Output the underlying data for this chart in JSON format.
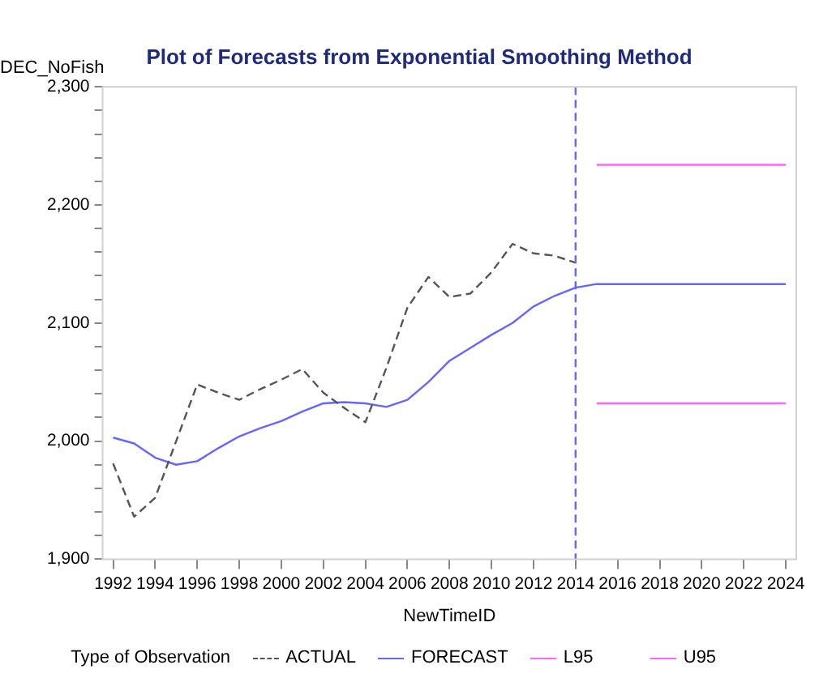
{
  "chart_data": {
    "type": "line",
    "title": "Plot of Forecasts from Exponential Smoothing Method",
    "xlabel": "NewTimeID",
    "ylabel": "DEC_NoFish",
    "legend_title": "Type of Observation",
    "xlim": [
      1991.5,
      2024.5
    ],
    "xticks": [
      1992,
      1994,
      1996,
      1998,
      2000,
      2002,
      2004,
      2006,
      2008,
      2010,
      2012,
      2014,
      2016,
      2018,
      2020,
      2022,
      2024
    ],
    "ylim": [
      1900,
      2300
    ],
    "yticks": [
      {
        "value": 1900,
        "label": "1,900"
      },
      {
        "value": 1920,
        "label": null
      },
      {
        "value": 1940,
        "label": null
      },
      {
        "value": 1960,
        "label": null
      },
      {
        "value": 1980,
        "label": null
      },
      {
        "value": 2000,
        "label": "2,000"
      },
      {
        "value": 2020,
        "label": null
      },
      {
        "value": 2040,
        "label": null
      },
      {
        "value": 2060,
        "label": null
      },
      {
        "value": 2080,
        "label": null
      },
      {
        "value": 2100,
        "label": "2,100"
      },
      {
        "value": 2120,
        "label": null
      },
      {
        "value": 2140,
        "label": null
      },
      {
        "value": 2160,
        "label": null
      },
      {
        "value": 2180,
        "label": null
      },
      {
        "value": 2200,
        "label": "2,200"
      },
      {
        "value": 2220,
        "label": null
      },
      {
        "value": 2240,
        "label": null
      },
      {
        "value": 2260,
        "label": null
      },
      {
        "value": 2280,
        "label": null
      },
      {
        "value": 2300,
        "label": "2,300"
      }
    ],
    "grid": false,
    "legend": "bottom",
    "marker": "none",
    "ref_lines": [
      {
        "axis": "x",
        "value": 2014,
        "color": "#6666ff",
        "line_style": "dashed"
      }
    ],
    "series": [
      {
        "name": "ACTUAL",
        "color": "#555555",
        "line_style": "dashed",
        "x": [
          1992,
          1993,
          1994,
          1995,
          1996,
          1997,
          1998,
          1999,
          2000,
          2001,
          2002,
          2003,
          2004,
          2005,
          2006,
          2007,
          2008,
          2009,
          2010,
          2011,
          2012,
          2013,
          2014
        ],
        "values": [
          1981,
          1936,
          1952,
          2000,
          2048,
          2041,
          2035,
          2044,
          2052,
          2061,
          2041,
          2028,
          2016,
          2062,
          2113,
          2139,
          2122,
          2125,
          2143,
          2167,
          2159,
          2157,
          2151
        ]
      },
      {
        "name": "FORECAST",
        "color": "#6666ff",
        "line_style": "solid",
        "x": [
          1992,
          1993,
          1994,
          1995,
          1996,
          1997,
          1998,
          1999,
          2000,
          2001,
          2002,
          2003,
          2004,
          2005,
          2006,
          2007,
          2008,
          2009,
          2010,
          2011,
          2012,
          2013,
          2014,
          2015,
          2016,
          2017,
          2018,
          2019,
          2020,
          2021,
          2022,
          2023,
          2024
        ],
        "values": [
          2003,
          1998,
          1986,
          1980,
          1983,
          1994,
          2004,
          2011,
          2017,
          2025,
          2032,
          2033,
          2032,
          2029,
          2035,
          2050,
          2068,
          2079,
          2090,
          2100,
          2114,
          2123,
          2130,
          2133,
          2133,
          2133,
          2133,
          2133,
          2133,
          2133,
          2133,
          2133,
          2133
        ]
      },
      {
        "name": "L95",
        "color": "#ff66ff",
        "line_style": "solid",
        "x": [
          2015,
          2016,
          2017,
          2018,
          2019,
          2020,
          2021,
          2022,
          2023,
          2024
        ],
        "values": [
          2032,
          2032,
          2032,
          2032,
          2032,
          2032,
          2032,
          2032,
          2032,
          2032
        ]
      },
      {
        "name": "U95",
        "color": "#ff66ff",
        "line_style": "solid",
        "x": [
          2015,
          2016,
          2017,
          2018,
          2019,
          2020,
          2021,
          2022,
          2023,
          2024
        ],
        "values": [
          2234,
          2234,
          2234,
          2234,
          2234,
          2234,
          2234,
          2234,
          2234,
          2234
        ]
      }
    ]
  }
}
